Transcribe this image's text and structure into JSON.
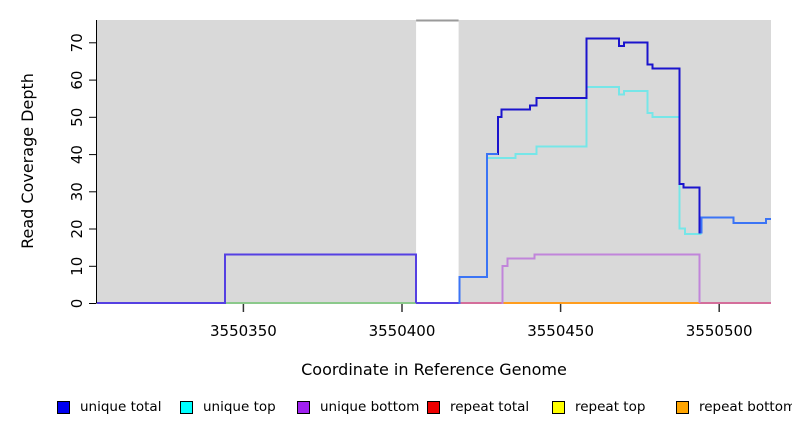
{
  "chart_data": {
    "type": "line",
    "subtype": "step-coverage",
    "title": "",
    "xlabel": "Coordinate in Reference Genome",
    "ylabel": "Read Coverage Depth",
    "xlim": [
      3550304,
      3550516.5
    ],
    "ylim": [
      0,
      76
    ],
    "x_ticks": [
      3550350,
      3550400,
      3550450,
      3550500
    ],
    "y_ticks": [
      0,
      10,
      20,
      30,
      40,
      50,
      60,
      70
    ],
    "grid": false,
    "legend_position": "bottom",
    "plot_bg": "#d9d9d9",
    "gap_region": {
      "from": 3550404.6,
      "to": 3550418,
      "fill": "#ffffff",
      "cap_color": "#9a9a9a"
    },
    "segments": [
      {
        "name": "baseline-unique-blend-left",
        "color": "#5540e2",
        "width": 2,
        "points": [
          [
            3550304,
            0
          ]
        ],
        "end": 3550344
      },
      {
        "name": "baseline-green-blend",
        "color": "#8bc98b",
        "width": 2,
        "points": [
          [
            3550344,
            0
          ]
        ],
        "end": 3550404.5
      },
      {
        "name": "baseline-unique-blend-gap",
        "color": "#5540e2",
        "width": 2,
        "points": [
          [
            3550404.5,
            0
          ]
        ],
        "end": 3550418
      },
      {
        "name": "baseline-pink-blend-1",
        "color": "#d46e9b",
        "width": 2,
        "points": [
          [
            3550418,
            0
          ]
        ],
        "end": 3550431.6
      },
      {
        "name": "baseline-repeat-bottom",
        "color": "#ff9d1e",
        "width": 2,
        "points": [
          [
            3550431.6,
            0
          ]
        ],
        "end": 3550494
      },
      {
        "name": "baseline-pink-blend-2",
        "color": "#d46e9b",
        "width": 2,
        "points": [
          [
            3550494,
            0
          ]
        ],
        "end": 3550516.5
      },
      {
        "name": "unique-bottom-left-rect",
        "color": "#5540e2",
        "width": 2,
        "points": [
          [
            3550344,
            0
          ],
          [
            3550344.3,
            13
          ],
          [
            3550404.5,
            0
          ]
        ],
        "end": 3550404.5
      },
      {
        "name": "unique-bottom-right",
        "color": "#c185da",
        "width": 2,
        "points": [
          [
            3550431.6,
            0
          ],
          [
            3550431.9,
            10
          ],
          [
            3550433.5,
            12
          ],
          [
            3550441.9,
            13
          ],
          [
            3550494,
            0
          ]
        ],
        "end": 3550494
      },
      {
        "name": "unique-top",
        "color": "#76e6e8",
        "width": 2,
        "points": [
          [
            3550418,
            0
          ],
          [
            3550418.3,
            7
          ],
          [
            3550427,
            39
          ],
          [
            3550436,
            40
          ],
          [
            3550442.6,
            42
          ],
          [
            3550458.4,
            58
          ],
          [
            3550468.6,
            56
          ],
          [
            3550470.2,
            57
          ],
          [
            3550477.5,
            51
          ],
          [
            3550479.2,
            50
          ],
          [
            3550487.6,
            20
          ],
          [
            3550489.4,
            18.5
          ],
          [
            3550494.3,
            23
          ],
          [
            3550504.7,
            21.5
          ],
          [
            3550515,
            22.5
          ]
        ],
        "end": 3550516.5
      },
      {
        "name": "unique-total",
        "color": "#1b14cd",
        "width": 2,
        "points": [
          [
            3550418,
            0
          ],
          [
            3550418.3,
            7
          ],
          [
            3550427,
            40
          ],
          [
            3550430.5,
            50
          ],
          [
            3550431.6,
            52
          ],
          [
            3550440.5,
            53
          ],
          [
            3550442.6,
            55
          ],
          [
            3550458.4,
            71
          ],
          [
            3550468.6,
            69
          ],
          [
            3550470.2,
            70
          ],
          [
            3550477.5,
            64
          ],
          [
            3550479.2,
            63
          ],
          [
            3550487.6,
            32
          ],
          [
            3550488.9,
            31
          ],
          [
            3550493.9,
            19
          ],
          [
            3550494.3,
            23
          ],
          [
            3550504.7,
            21.5
          ],
          [
            3550515,
            22.5
          ]
        ],
        "end": 3550516.5
      },
      {
        "name": "unique-total-overlap-top-a",
        "color": "#3b74f5",
        "width": 2,
        "points": [
          [
            3550418,
            0
          ],
          [
            3550418.3,
            7
          ],
          [
            3550427,
            40
          ]
        ],
        "end": 3550430.5
      },
      {
        "name": "unique-total-overlap-top-b",
        "color": "#3b74f5",
        "width": 2,
        "points": [
          [
            3550494.3,
            19
          ],
          [
            3550494.6,
            23
          ],
          [
            3550504.7,
            21.5
          ],
          [
            3550515,
            22.5
          ]
        ],
        "end": 3550516.5
      }
    ]
  },
  "legend": {
    "items": [
      {
        "label": "unique total",
        "color": "#0000f0"
      },
      {
        "label": "unique top",
        "color": "#00ffff"
      },
      {
        "label": "unique bottom",
        "color": "#a020f0"
      },
      {
        "label": "repeat total",
        "color": "#ee0000"
      },
      {
        "label": "repeat top",
        "color": "#ffff00"
      },
      {
        "label": "repeat bottom",
        "color": "#ffa500"
      }
    ]
  }
}
